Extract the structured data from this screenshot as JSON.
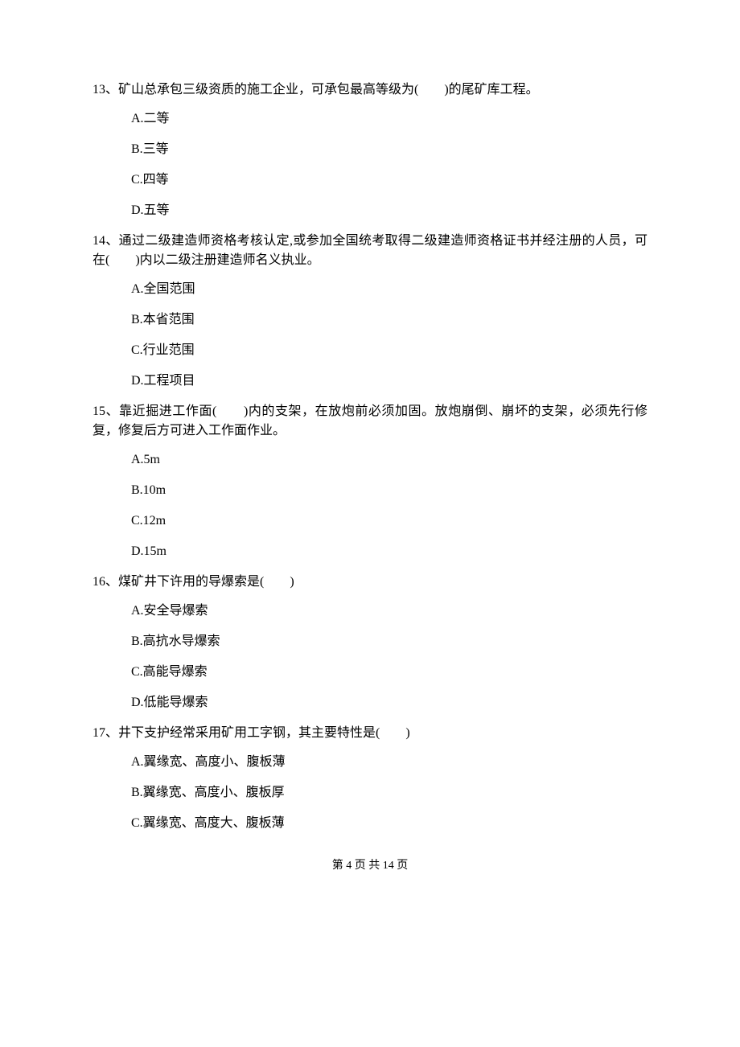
{
  "questions": [
    {
      "number": "13",
      "stem_before": "、矿山总承包三级资质的施工企业，可承包最高等级为(",
      "stem_after": ")的尾矿库工程。",
      "options": [
        "A.二等",
        "B.三等",
        "C.四等",
        "D.五等"
      ]
    },
    {
      "number": "14",
      "stem_before": "、通过二级建造师资格考核认定,或参加全国统考取得二级建造师资格证书并经注册的人员，可在(",
      "stem_after": ")内以二级注册建造师名义执业。",
      "options": [
        "A.全国范围",
        "B.本省范围",
        "C.行业范围",
        "D.工程项目"
      ]
    },
    {
      "number": "15",
      "stem_before": "、靠近掘进工作面(",
      "stem_after": ")内的支架，在放炮前必须加固。放炮崩倒、崩坏的支架，必须先行修复，修复后方可进入工作面作业。",
      "options": [
        "A.5m",
        "B.10m",
        "C.12m",
        "D.15m"
      ]
    },
    {
      "number": "16",
      "stem_before": "、煤矿井下许用的导爆索是(",
      "stem_after": ")",
      "options": [
        "A.安全导爆索",
        "B.高抗水导爆索",
        "C.高能导爆索",
        "D.低能导爆索"
      ]
    },
    {
      "number": "17",
      "stem_before": "、井下支护经常采用矿用工字钢，其主要特性是(",
      "stem_after": ")",
      "options": [
        "A.翼缘宽、高度小、腹板薄",
        "B.翼缘宽、高度小、腹板厚",
        "C.翼缘宽、高度大、腹板薄"
      ]
    }
  ],
  "blank": "　　",
  "footer": "第 4 页 共 14 页"
}
